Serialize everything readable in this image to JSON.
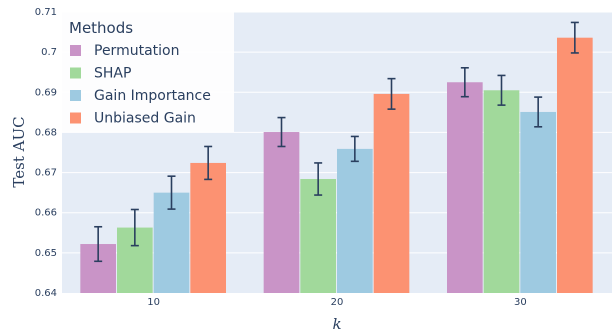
{
  "chart_data": {
    "type": "bar",
    "xlabel": "k",
    "ylabel": "Test AUC",
    "categories": [
      "10",
      "20",
      "30"
    ],
    "ylim": [
      0.64,
      0.71
    ],
    "yticks": [
      "0.64",
      "0.65",
      "0.66",
      "0.67",
      "0.68",
      "0.69",
      "0.7",
      "0.71"
    ],
    "grid": true,
    "legend": {
      "title": "Methods",
      "position": "top-left"
    },
    "series": [
      {
        "name": "Permutation",
        "color": "#c994c7",
        "values": [
          0.6522,
          0.6801,
          0.6925
        ],
        "errors": [
          0.0043,
          0.0036,
          0.0036
        ]
      },
      {
        "name": "SHAP",
        "color": "#a1d99b",
        "values": [
          0.6563,
          0.6684,
          0.6905
        ],
        "errors": [
          0.0045,
          0.004,
          0.0037
        ]
      },
      {
        "name": "Gain Importance",
        "color": "#9ecae1",
        "values": [
          0.665,
          0.6759,
          0.6851
        ],
        "errors": [
          0.0041,
          0.0031,
          0.0037
        ]
      },
      {
        "name": "Unbiased Gain",
        "color": "#fc9272",
        "values": [
          0.6724,
          0.6896,
          0.7036
        ],
        "errors": [
          0.0041,
          0.0038,
          0.0038
        ]
      }
    ]
  }
}
